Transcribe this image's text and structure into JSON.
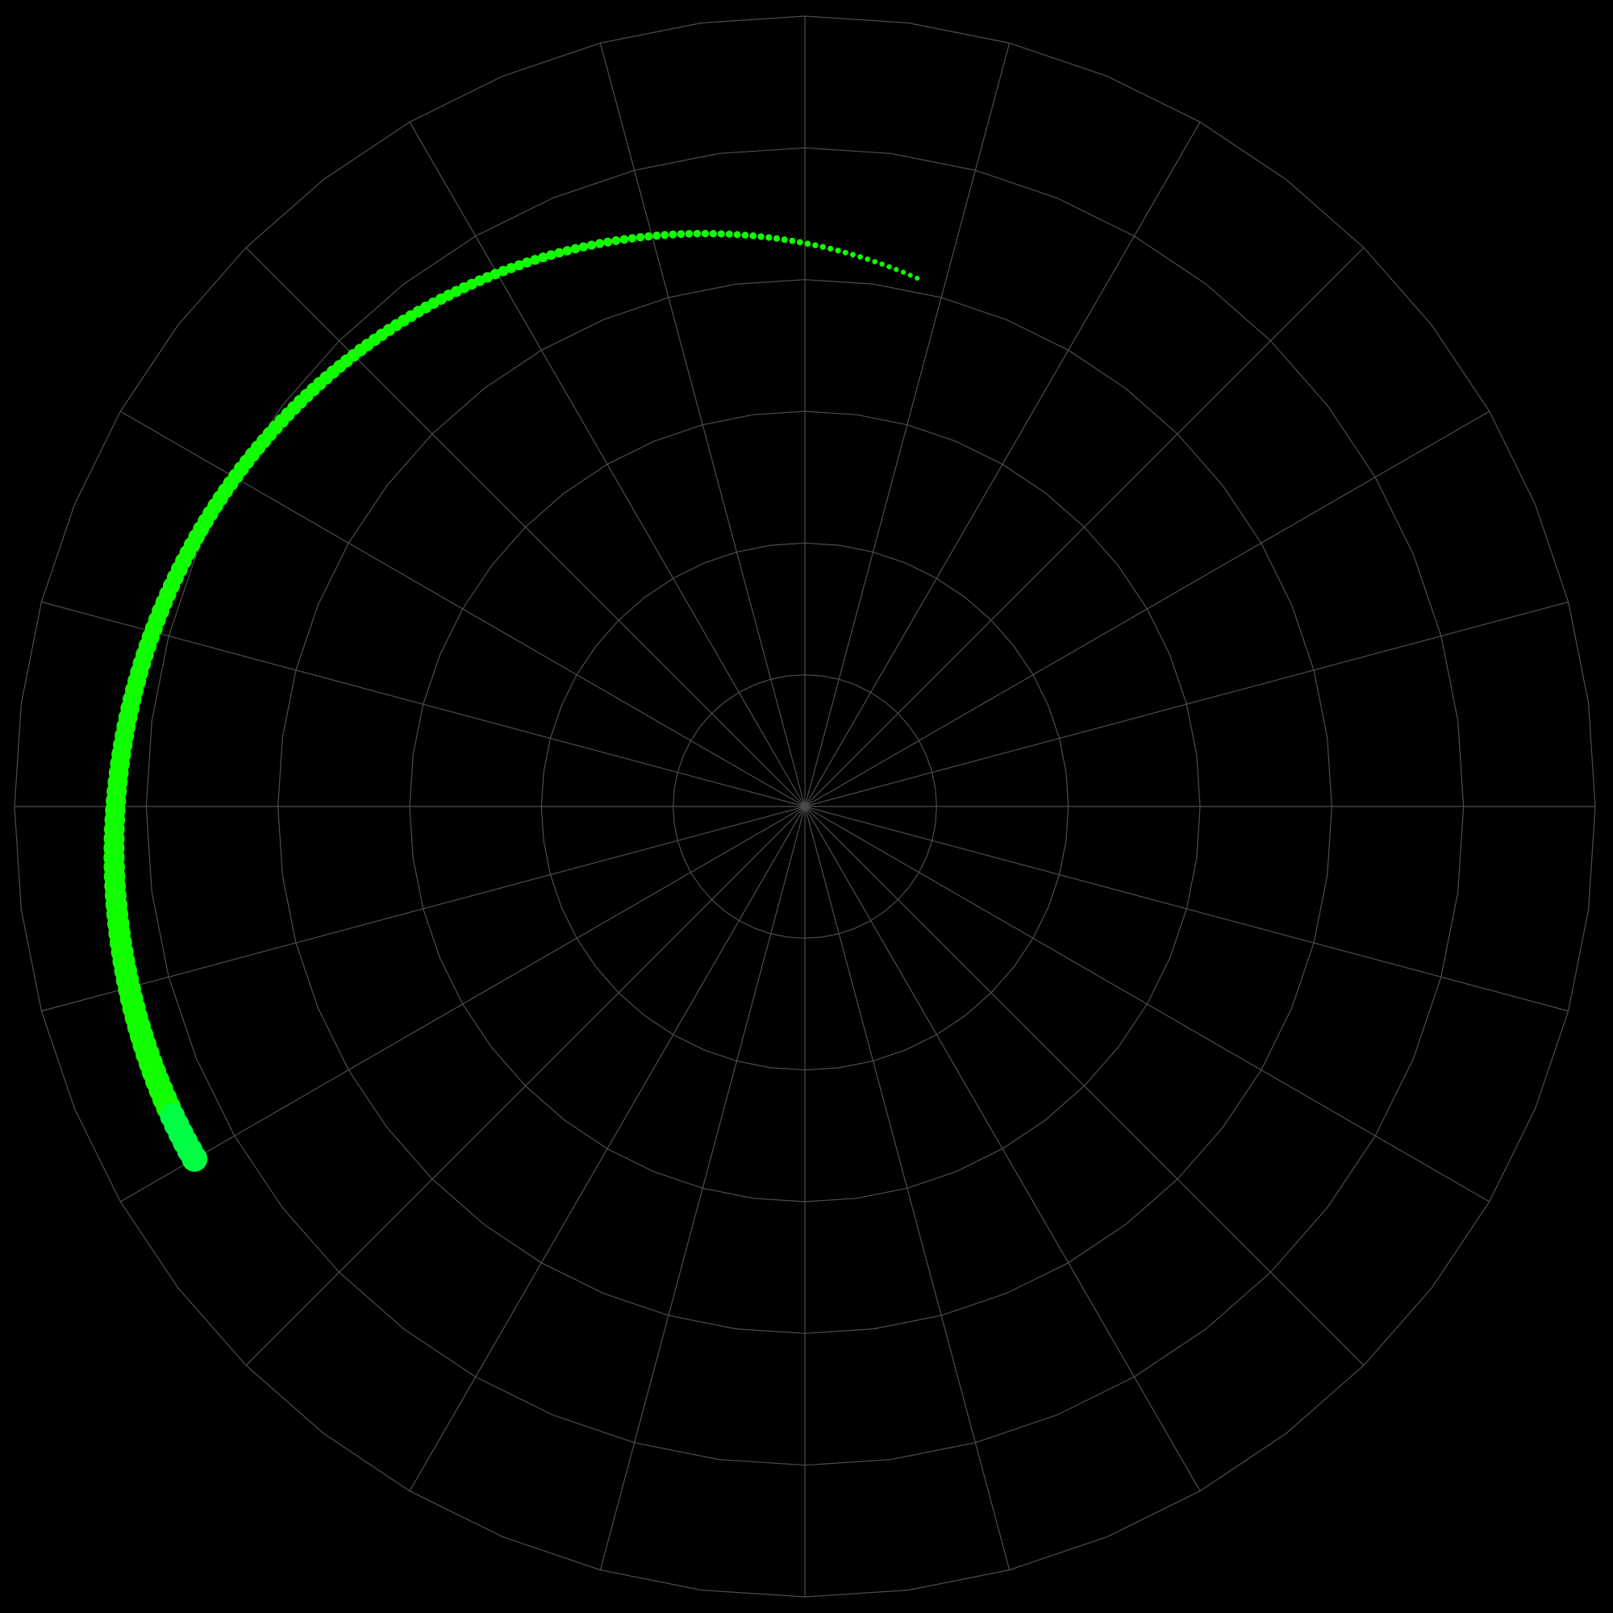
{
  "chart_data": {
    "type": "scatter",
    "coordinate_system": "polar",
    "title": "",
    "grid": true,
    "legend": "none",
    "radial_axis": {
      "range": [
        0,
        6
      ],
      "rings": [
        1,
        2,
        3,
        4,
        5,
        6
      ],
      "tick_labels_visible": false
    },
    "angular_axis": {
      "spoke_step_degrees": 15,
      "tick_labels_visible": false
    },
    "series": [
      {
        "color": "#11ff00",
        "end_color": "#00ff44",
        "marker": "circle",
        "size_trend": "increasing",
        "theta_start_deg": 78,
        "theta_end_deg": 210,
        "r_start": 4.1,
        "r_end": 5.35,
        "point_count": 170
      }
    ],
    "colors": {
      "background": "#000000",
      "grid": "#4d4d4d"
    }
  }
}
